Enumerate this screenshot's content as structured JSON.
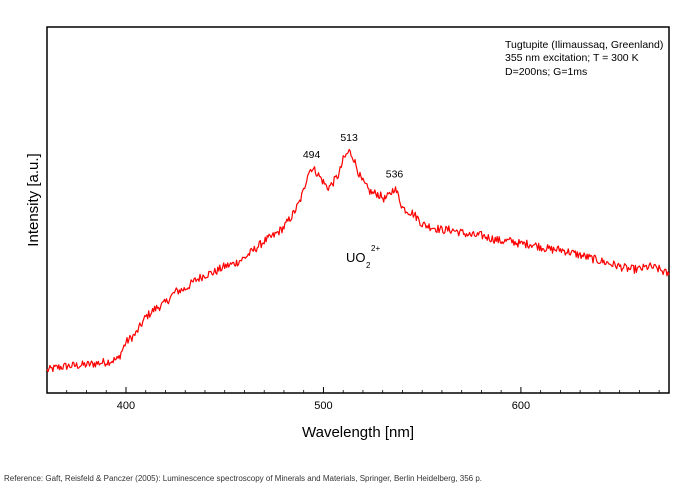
{
  "chart_data": {
    "type": "line",
    "title": "",
    "xlabel": "Wavelength [nm]",
    "ylabel": "Intensity [a.u.]",
    "xlim": [
      360,
      675
    ],
    "ylim": [
      0,
      1
    ],
    "x_ticks": [
      400,
      500,
      600
    ],
    "y_ticks": [],
    "grid": false,
    "legend": "none",
    "line_color": "#ff0000",
    "series": [
      {
        "x": [
          360,
          365,
          370,
          380,
          390,
          396,
          400,
          405,
          410,
          415,
          420,
          425,
          430,
          435,
          440,
          445,
          450,
          455,
          460,
          465,
          470,
          475,
          480,
          485,
          488,
          490,
          492,
          494,
          496,
          498,
          500,
          502,
          504,
          506,
          508,
          510,
          512,
          513,
          515,
          517,
          519,
          521,
          523,
          525,
          527,
          529,
          531,
          533,
          535,
          536,
          538,
          540,
          542,
          545,
          548,
          550,
          555,
          560,
          565,
          570,
          575,
          580,
          585,
          590,
          595,
          600,
          605,
          610,
          615,
          620,
          625,
          630,
          635,
          640,
          645,
          650,
          655,
          660,
          665,
          670,
          675
        ],
        "values": [
          0.02,
          0.03,
          0.035,
          0.04,
          0.05,
          0.06,
          0.12,
          0.15,
          0.21,
          0.24,
          0.26,
          0.3,
          0.31,
          0.34,
          0.36,
          0.37,
          0.39,
          0.4,
          0.42,
          0.45,
          0.48,
          0.5,
          0.53,
          0.58,
          0.62,
          0.66,
          0.72,
          0.74,
          0.73,
          0.71,
          0.69,
          0.67,
          0.68,
          0.7,
          0.72,
          0.77,
          0.79,
          0.8,
          0.78,
          0.74,
          0.7,
          0.68,
          0.66,
          0.65,
          0.65,
          0.64,
          0.63,
          0.64,
          0.66,
          0.67,
          0.64,
          0.6,
          0.59,
          0.58,
          0.56,
          0.54,
          0.53,
          0.52,
          0.52,
          0.51,
          0.5,
          0.5,
          0.49,
          0.48,
          0.48,
          0.47,
          0.47,
          0.46,
          0.45,
          0.45,
          0.44,
          0.43,
          0.42,
          0.41,
          0.4,
          0.39,
          0.38,
          0.38,
          0.39,
          0.38,
          0.36
        ]
      }
    ],
    "annotations": {
      "info_lines": [
        "Tugtupite (Ilimaussaq, Greenland)",
        "355 nm excitation; T = 300 K",
        "D=200ns; G=1ms"
      ],
      "peaks": [
        {
          "label": "494",
          "x": 494,
          "y": 0.74
        },
        {
          "label": "513",
          "x": 513,
          "y": 0.8
        },
        {
          "label": "536",
          "x": 536,
          "y": 0.67
        }
      ],
      "ion_base": "UO",
      "ion_sub": "2",
      "ion_sup": "2+"
    }
  },
  "reference": "Reference: Gaft, Reisfeld & Panczer (2005): Luminescence spectroscopy of Minerals and Materials, Springer, Berlin Heidelberg, 356 p."
}
